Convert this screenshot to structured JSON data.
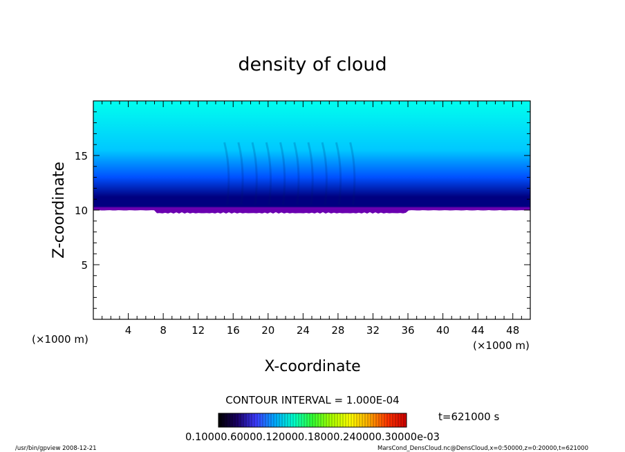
{
  "chart_data": {
    "type": "heatmap",
    "title": "density of cloud",
    "xlabel": "X-coordinate",
    "ylabel": "Z-coordinate",
    "x_unit": "(×1000 m)",
    "y_unit": "(×1000 m)",
    "xlim": [
      0,
      50
    ],
    "ylim": [
      0,
      20
    ],
    "x_ticks": [
      4,
      8,
      12,
      16,
      20,
      24,
      28,
      32,
      36,
      40,
      44,
      48
    ],
    "y_ticks": [
      5,
      10,
      15
    ],
    "cloud_base_z": 10,
    "cloud_top_z": 20,
    "contour_interval_label": "CONTOUR INTERVAL = 1.000E-04",
    "time_label": "t=621000 s",
    "colorbar_labels": "0.10000.60000.120000.18000.240000.30000e-03",
    "colorbar_colors": [
      "#000000",
      "#1a0066",
      "#3c3cff",
      "#00aaff",
      "#00ffcc",
      "#33ff33",
      "#aaff00",
      "#ffff00",
      "#ffaa00",
      "#ff3300",
      "#cc0000"
    ],
    "field_colors": {
      "base": "#6a00b0",
      "dark": "#000080",
      "mid": "#0050ff",
      "light": "#00c8ff",
      "top": "#00ffee"
    },
    "footer_left": "/usr/bin/gpview   2008-12-21",
    "footer_right": "MarsCond_DensCloud.nc@DensCloud,x=0:50000,z=0:20000,t=621000"
  }
}
